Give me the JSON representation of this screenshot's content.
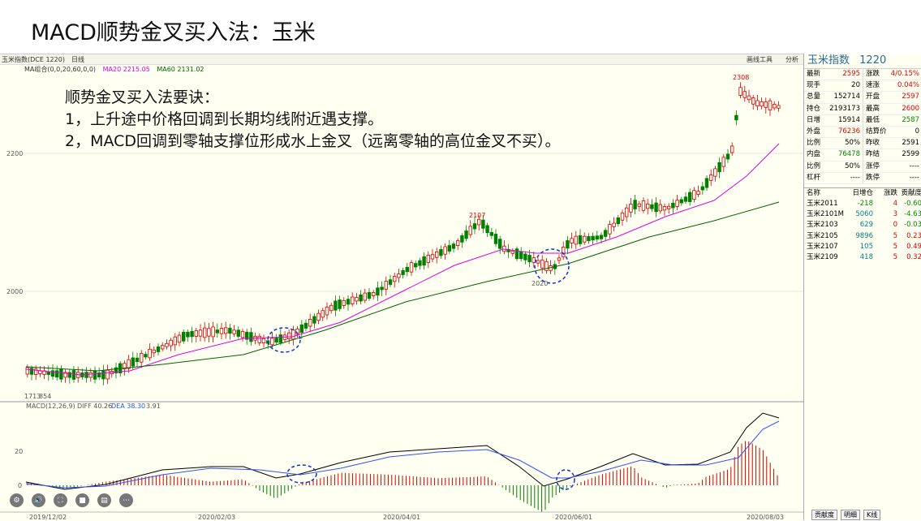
{
  "slide_title": "MACD顺势金叉买入法：玉米",
  "topbar": {
    "symbol": "玉米指数(DCE 1220)",
    "period": "日线",
    "right_label_1": "画线工具",
    "right_label_2": "分析"
  },
  "ma_legend": {
    "ma_set": "MA组合(0,0,20,60,0,0)",
    "ma20": "MA20 2215.05",
    "ma60": "MA60 2131.02"
  },
  "notes": {
    "heading": "顺势金叉买入法要诀：",
    "line1": "1，上升途中价格回调到长期均线附近遇支撑。",
    "line2": "2，MACD回调到零轴支撑位形成水上金叉（远离零轴的高位金叉不买）。"
  },
  "price_axis": {
    "p2200": "2200",
    "p2000": "2000"
  },
  "annotations": {
    "low_label": "1713",
    "low_label2": "854",
    "peak_2107": "2107",
    "dip_2020": "2020",
    "peak_2308": "2308"
  },
  "macd_legend": {
    "name": "MACD(12,26,9)",
    "diff": "DIFF 40.26",
    "dea": "DEA 38.30",
    "macd": "3.91"
  },
  "macd_axis": {
    "m20": "20",
    "m0": "0"
  },
  "dates": [
    "2019/12/02",
    "2020/02/03",
    "2020/04/01",
    "2020/06/01",
    "2020/08/03"
  ],
  "colors": {
    "up": "#d00000",
    "down": "#008000",
    "ma20": "#e000e0",
    "ma60": "#006400",
    "dea": "#3050ff"
  },
  "quote_panel": {
    "title": "玉米指数",
    "code": "1220",
    "rows": [
      [
        {
          "k": "最新",
          "v": "2595",
          "c": "up"
        },
        {
          "k": "涨跌",
          "v": "4/0.15%",
          "c": "up"
        }
      ],
      [
        {
          "k": "现手",
          "v": "20",
          "c": ""
        },
        {
          "k": "速涨",
          "v": "0.04%",
          "c": "up"
        }
      ],
      [
        {
          "k": "总量",
          "v": "152714",
          "c": ""
        },
        {
          "k": "开盘",
          "v": "2597",
          "c": "up"
        }
      ],
      [
        {
          "k": "持仓",
          "v": "2193173",
          "c": ""
        },
        {
          "k": "最高",
          "v": "2600",
          "c": "up"
        }
      ],
      [
        {
          "k": "日增",
          "v": "15914",
          "c": ""
        },
        {
          "k": "最低",
          "v": "2587",
          "c": "dn"
        }
      ],
      [
        {
          "k": "外盘",
          "v": "76236",
          "c": "up"
        },
        {
          "k": "结算价",
          "v": "0",
          "c": ""
        }
      ],
      [
        {
          "k": "比例",
          "v": "50%",
          "c": ""
        },
        {
          "k": "昨收",
          "v": "2591",
          "c": ""
        }
      ],
      [
        {
          "k": "内盘",
          "v": "76478",
          "c": "dn"
        },
        {
          "k": "昨结",
          "v": "2599",
          "c": ""
        }
      ],
      [
        {
          "k": "比例",
          "v": "50%",
          "c": ""
        },
        {
          "k": "涨停",
          "v": "----",
          "c": ""
        }
      ],
      [
        {
          "k": "杠杆",
          "v": "----",
          "c": ""
        },
        {
          "k": "跌停",
          "v": "----",
          "c": ""
        }
      ]
    ],
    "contract_header": [
      "名称",
      "日增仓",
      "涨跌",
      "贡献度"
    ],
    "contracts": [
      [
        "玉米2011",
        "-218",
        "4",
        "-0.60"
      ],
      [
        "玉米2101M",
        "5060",
        "3",
        "-4.63"
      ],
      [
        "玉米2103",
        "629",
        "0",
        "-0.03"
      ],
      [
        "玉米2105",
        "9896",
        "5",
        "0.23"
      ],
      [
        "玉米2107",
        "105",
        "5",
        "0.49"
      ],
      [
        "玉米2109",
        "418",
        "5",
        "0.32"
      ]
    ]
  },
  "bottom_tabs": [
    "贡献度",
    "明细",
    "K线"
  ],
  "toolbar_icons": [
    "gear-icon",
    "sound-icon",
    "fullscreen-icon",
    "camera-icon",
    "chat-icon",
    "more-icon"
  ]
}
